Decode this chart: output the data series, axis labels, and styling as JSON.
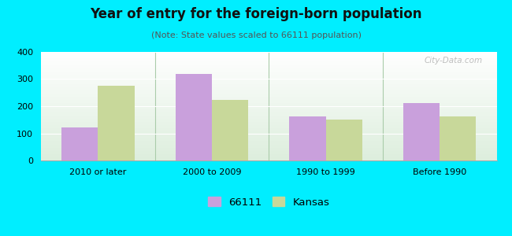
{
  "title": "Year of entry for the foreign-born population",
  "subtitle": "(Note: State values scaled to 66111 population)",
  "categories": [
    "2010 or later",
    "2000 to 2009",
    "1990 to 1999",
    "Before 1990"
  ],
  "series_66111": [
    123,
    320,
    163,
    212
  ],
  "series_kansas": [
    275,
    222,
    152,
    162
  ],
  "color_66111": "#c9a0dc",
  "color_kansas": "#c8d89a",
  "background_outer": "#00eeff",
  "background_plot_top": "#ffffff",
  "background_plot_bottom": "#ddeedd",
  "ylim": [
    0,
    400
  ],
  "yticks": [
    0,
    100,
    200,
    300,
    400
  ],
  "bar_width": 0.32,
  "legend_label_66111": "66111",
  "legend_label_kansas": "Kansas",
  "watermark": "City-Data.com",
  "title_fontsize": 12,
  "subtitle_fontsize": 8,
  "tick_fontsize": 8
}
